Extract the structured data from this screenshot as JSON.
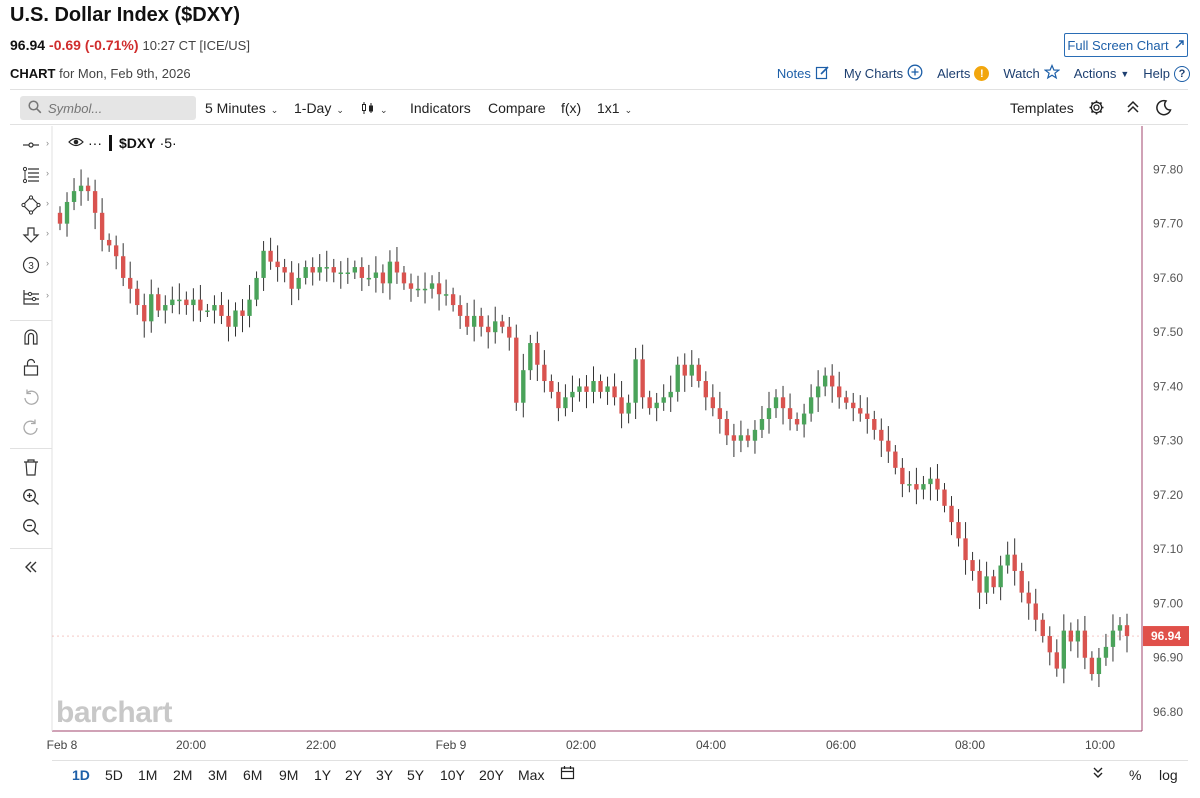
{
  "header": {
    "title": "U.S. Dollar Index ($DXY)",
    "last": "96.94",
    "change": "-0.69 (-0.71%)",
    "time": "10:27 CT [ICE/US]",
    "fullscreen_label": "Full Screen Chart",
    "chart_label": "CHART",
    "chart_date": "for Mon, Feb 9th, 2026"
  },
  "links": {
    "notes": "Notes",
    "my_charts": "My Charts",
    "alerts": "Alerts",
    "watch": "Watch",
    "actions": "Actions",
    "help": "Help"
  },
  "toolbar": {
    "symbol_placeholder": "Symbol...",
    "interval": "5 Minutes",
    "period": "1-Day",
    "indicators": "Indicators",
    "compare": "Compare",
    "fx": "f(x)",
    "layout": "1x1",
    "templates": "Templates"
  },
  "legend": {
    "symbol": "$DXY",
    "interval": "·5·",
    "dots": "···"
  },
  "watermark": "barchart",
  "bottom": {
    "ranges": [
      "1D",
      "5D",
      "1M",
      "2M",
      "3M",
      "6M",
      "9M",
      "1Y",
      "2Y",
      "3Y",
      "5Y",
      "10Y",
      "20Y",
      "Max"
    ],
    "active": "1D",
    "percent": "%",
    "log": "log"
  },
  "colors": {
    "up": "#4aa35a",
    "down": "#d9534f",
    "accent": "#1d5fa8",
    "border": "#a0466e",
    "price_tag": "#e0504a"
  },
  "icons": [
    "crosshair-icon",
    "fib-lines-icon",
    "shapes-icon",
    "arrow-down-icon",
    "counter-icon",
    "measure-icon",
    "magnet-icon",
    "lock-icon",
    "undo-icon",
    "redo-icon",
    "trash-icon",
    "zoom-in-icon",
    "zoom-out-icon",
    "collapse-icon"
  ],
  "chart_data": {
    "type": "candlestick",
    "interval": "5 Minutes",
    "ylim": [
      96.765,
      97.88
    ],
    "yticks": [
      "97.80",
      "97.70",
      "97.60",
      "97.50",
      "97.40",
      "97.30",
      "97.20",
      "97.10",
      "97.00",
      "96.90",
      "96.80"
    ],
    "xticks": [
      "Feb 8",
      "20:00",
      "22:00",
      "Feb 9",
      "02:00",
      "04:00",
      "06:00",
      "08:00",
      "10:00"
    ],
    "last_price": "96.94",
    "closes": [
      97.7,
      97.74,
      97.76,
      97.77,
      97.76,
      97.72,
      97.67,
      97.66,
      97.64,
      97.6,
      97.58,
      97.55,
      97.52,
      97.57,
      97.54,
      97.55,
      97.56,
      97.56,
      97.55,
      97.56,
      97.54,
      97.54,
      97.55,
      97.53,
      97.51,
      97.54,
      97.53,
      97.56,
      97.6,
      97.65,
      97.63,
      97.62,
      97.61,
      97.58,
      97.6,
      97.62,
      97.61,
      97.62,
      97.62,
      97.61,
      97.61,
      97.61,
      97.62,
      97.6,
      97.6,
      97.61,
      97.59,
      97.63,
      97.61,
      97.59,
      97.58,
      97.58,
      97.58,
      97.59,
      97.57,
      97.57,
      97.55,
      97.53,
      97.51,
      97.53,
      97.51,
      97.5,
      97.52,
      97.51,
      97.49,
      97.37,
      97.43,
      97.48,
      97.44,
      97.41,
      97.39,
      97.36,
      97.38,
      97.39,
      97.4,
      97.39,
      97.41,
      97.39,
      97.4,
      97.38,
      97.35,
      97.37,
      97.45,
      97.38,
      97.36,
      97.37,
      97.38,
      97.39,
      97.44,
      97.42,
      97.44,
      97.41,
      97.38,
      97.36,
      97.34,
      97.31,
      97.3,
      97.31,
      97.3,
      97.32,
      97.34,
      97.36,
      97.38,
      97.36,
      97.34,
      97.33,
      97.35,
      97.38,
      97.4,
      97.42,
      97.4,
      97.38,
      97.37,
      97.36,
      97.35,
      97.34,
      97.32,
      97.3,
      97.28,
      97.25,
      97.22,
      97.22,
      97.21,
      97.22,
      97.23,
      97.21,
      97.18,
      97.15,
      97.12,
      97.08,
      97.06,
      97.02,
      97.05,
      97.03,
      97.07,
      97.09,
      97.06,
      97.02,
      97.0,
      96.97,
      96.94,
      96.91,
      96.88,
      96.95,
      96.93,
      96.95,
      96.9,
      96.87,
      96.9,
      96.92,
      96.95,
      96.96,
      96.94
    ]
  }
}
